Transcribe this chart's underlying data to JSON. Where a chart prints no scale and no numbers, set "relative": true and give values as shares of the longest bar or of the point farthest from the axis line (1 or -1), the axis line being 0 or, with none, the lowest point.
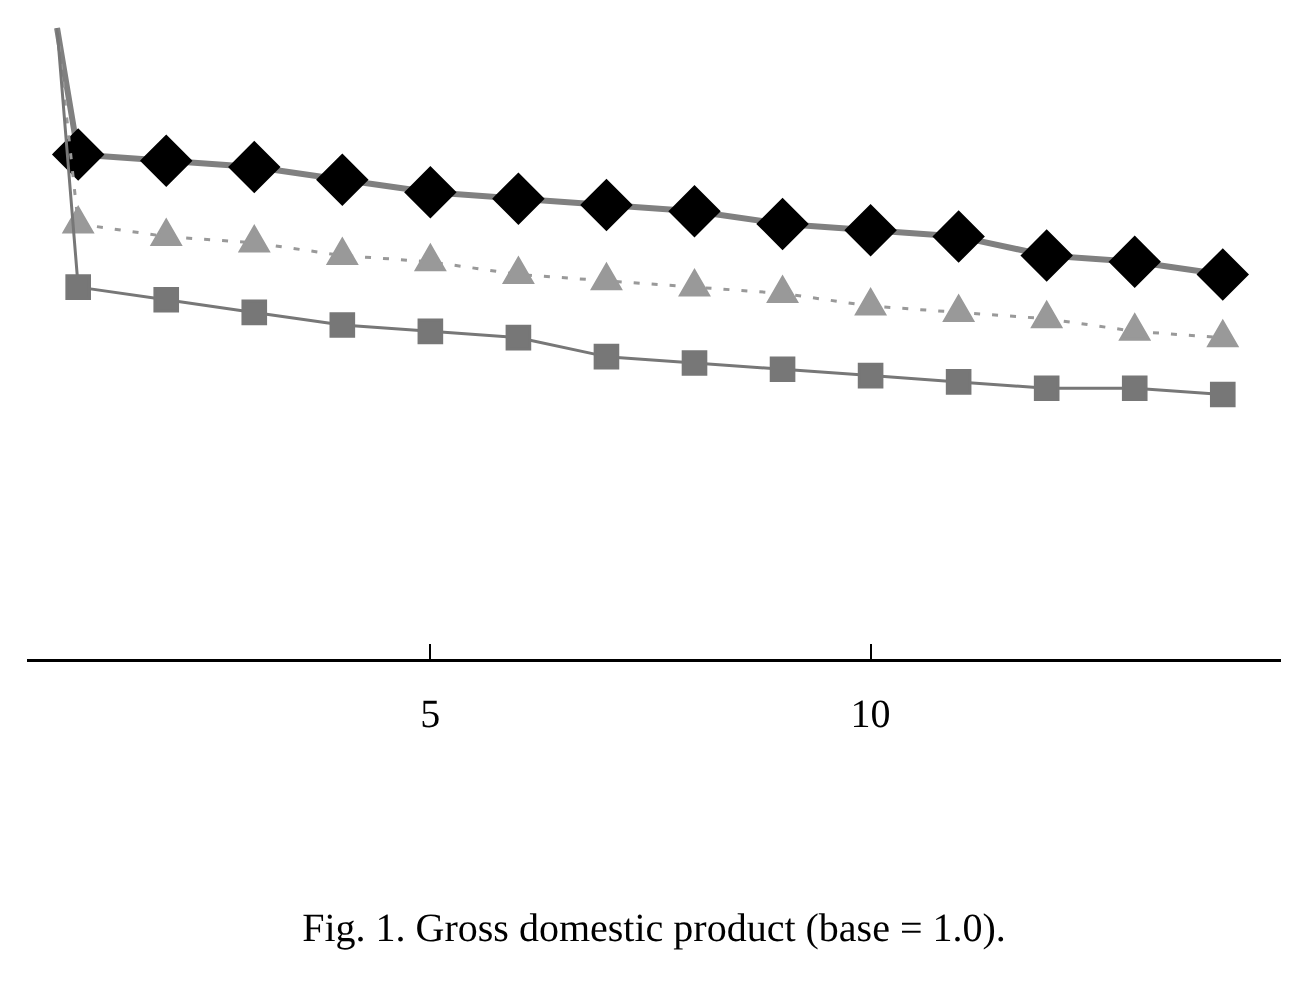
{
  "chart_data": {
    "type": "line",
    "relative": true,
    "xlim": [
      0.43,
      14.65
    ],
    "xticks": [
      5,
      10
    ],
    "grid": false,
    "legend": false,
    "annotations": [
      "Fig. 1. Gross domestic product (base = 1.0)."
    ],
    "series": [
      {
        "color": "#000000",
        "marker": "diamond",
        "line_style": "solid",
        "x": [
          0.76,
          1,
          2,
          3,
          4,
          5,
          6,
          7,
          8,
          9,
          10,
          11,
          12,
          13,
          14
        ],
        "values": [
          1,
          0.8,
          0.79,
          0.78,
          0.76,
          0.74,
          0.73,
          0.72,
          0.71,
          0.69,
          0.68,
          0.67,
          0.64,
          0.63,
          0.61
        ]
      },
      {
        "color": "#999999",
        "marker": "triangle",
        "line_style": "dotted",
        "x": [
          0.76,
          1,
          2,
          3,
          4,
          5,
          6,
          7,
          8,
          9,
          10,
          11,
          12,
          13,
          14
        ],
        "values": [
          1,
          0.69,
          0.67,
          0.66,
          0.64,
          0.63,
          0.61,
          0.6,
          0.59,
          0.58,
          0.56,
          0.55,
          0.54,
          0.52,
          0.51
        ]
      },
      {
        "color": "#777777",
        "marker": "square",
        "line_style": "solid",
        "x": [
          0.76,
          1,
          2,
          3,
          4,
          5,
          6,
          7,
          8,
          9,
          10,
          11,
          12,
          13,
          14
        ],
        "values": [
          1,
          0.59,
          0.57,
          0.55,
          0.53,
          0.52,
          0.51,
          0.48,
          0.47,
          0.46,
          0.45,
          0.44,
          0.43,
          0.43,
          0.42
        ]
      }
    ]
  }
}
